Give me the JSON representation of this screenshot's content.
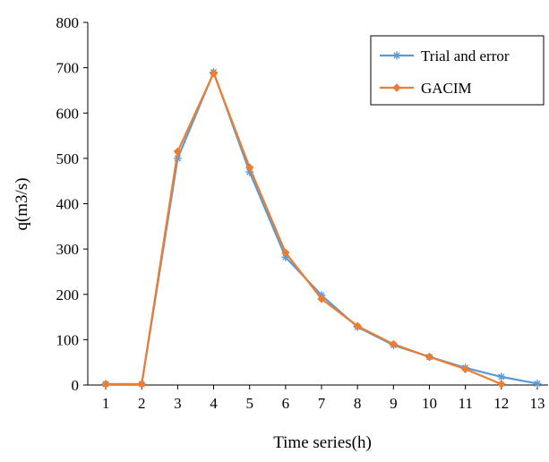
{
  "chart_data": {
    "type": "line",
    "title": "",
    "xlabel": "Time series(h)",
    "ylabel": "q(m3/s)",
    "x": [
      1,
      2,
      3,
      4,
      5,
      6,
      7,
      8,
      9,
      10,
      11,
      12,
      13
    ],
    "ylim": [
      0,
      800
    ],
    "yticks": [
      0,
      100,
      200,
      300,
      400,
      500,
      600,
      700,
      800
    ],
    "grid": false,
    "legend_position": "top-right",
    "series": [
      {
        "name": "Trial and error",
        "color": "#5b9bd5",
        "marker": "asterisk",
        "x": [
          1,
          2,
          3,
          4,
          5,
          6,
          7,
          8,
          9,
          10,
          11,
          12,
          13
        ],
        "values": [
          2,
          2,
          500,
          690,
          470,
          282,
          198,
          128,
          88,
          62,
          38,
          18,
          3
        ]
      },
      {
        "name": "GACIM",
        "color": "#ed7d31",
        "marker": "diamond",
        "x": [
          1,
          2,
          3,
          4,
          5,
          6,
          7,
          8,
          9,
          10,
          11,
          12
        ],
        "values": [
          2,
          2,
          515,
          688,
          480,
          292,
          190,
          130,
          90,
          62,
          35,
          2
        ]
      }
    ]
  }
}
